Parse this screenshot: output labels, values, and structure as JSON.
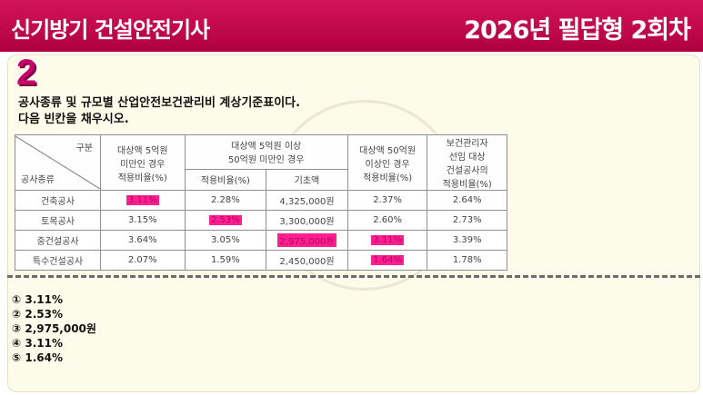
{
  "header": {
    "left_title": "신기방기 건설안전기사",
    "right_title": "2026년 필답형 2회차"
  },
  "question": {
    "number": "2",
    "line1": "공사종류 및 규모별 산업안전보건관리비 계상기준표이다.",
    "line2": "다음 빈칸을 채우시오."
  },
  "table": {
    "corner_top": "구분",
    "corner_bottom": "공사종류",
    "headers": {
      "col1": [
        "대상액 5억원",
        "미만인 경우",
        "적용비율(%)"
      ],
      "col2_group": [
        "대상액 5억원 이상",
        "50억원 미만인 경우"
      ],
      "col2a": "적용비율(%)",
      "col2b": "기초액",
      "col3": [
        "대상액 50억원",
        "이상인 경우",
        "적용비율(%)"
      ],
      "col4": [
        "보건관리자",
        "선임 대상",
        "건설공사의",
        "적용비율(%)"
      ]
    },
    "rows": [
      {
        "name": "건축공사",
        "c1": "3.11%",
        "c2": "2.28%",
        "c3": "4,325,000원",
        "c4": "2.37%",
        "c5": "2.64%"
      },
      {
        "name": "토목공사",
        "c1": "3.15%",
        "c2": "2.53%",
        "c3": "3,300,000원",
        "c4": "2.60%",
        "c5": "2.73%"
      },
      {
        "name": "중건설공사",
        "c1": "3.64%",
        "c2": "3.05%",
        "c3": "2,975,000원",
        "c4": "3.11%",
        "c5": "3.39%"
      },
      {
        "name": "특수건설공사",
        "c1": "2.07%",
        "c2": "1.59%",
        "c3": "2,450,000원",
        "c4": "1.64%",
        "c5": "1.78%"
      }
    ],
    "highlight_color": "#ff1f8f"
  },
  "answers": [
    "① 3.11%",
    "② 2.53%",
    "③ 2,975,000원",
    "④ 3.11%",
    "⑤ 1.64%"
  ],
  "colors": {
    "header_bg": "#c8004e",
    "card_bg": "#fdfbe9",
    "number_color": "#c8006a"
  }
}
